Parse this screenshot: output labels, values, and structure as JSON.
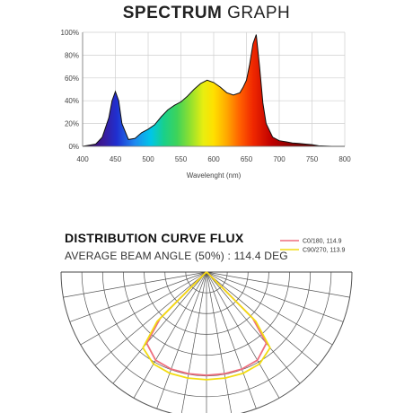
{
  "chart_data": [
    {
      "type": "area",
      "title_bold": "SPECTRUM",
      "title_rest": "GRAPH",
      "xlabel": "Wavelenght (nm)",
      "ylabel": "",
      "xlim": [
        400,
        800
      ],
      "ylim": [
        0,
        100
      ],
      "x_ticks": [
        400,
        450,
        500,
        550,
        600,
        650,
        700,
        750,
        800
      ],
      "y_ticks": [
        "0%",
        "20%",
        "40%",
        "60%",
        "80%",
        "100%"
      ],
      "grid": true,
      "fill": "rainbow",
      "series": [
        {
          "x": [
            400,
            420,
            430,
            440,
            445,
            450,
            455,
            460,
            470,
            480,
            490,
            500,
            510,
            520,
            530,
            540,
            550,
            560,
            570,
            580,
            590,
            600,
            610,
            620,
            630,
            640,
            645,
            650,
            655,
            660,
            665,
            670,
            675,
            680,
            690,
            700,
            710,
            720,
            730,
            740,
            750,
            760,
            780,
            800
          ],
          "y": [
            0,
            2,
            8,
            25,
            40,
            48,
            40,
            20,
            6,
            7,
            12,
            15,
            19,
            26,
            32,
            36,
            39,
            44,
            50,
            55,
            58,
            56,
            52,
            47,
            45,
            47,
            52,
            58,
            72,
            90,
            98,
            70,
            38,
            20,
            8,
            5,
            4,
            3,
            2.5,
            2,
            1.5,
            0.5,
            0,
            0
          ]
        }
      ]
    },
    {
      "type": "polar",
      "title": "DISTRIBUTION CURVE FLUX",
      "subtitle": "AVERAGE BEAM ANGLE  (50%) : 114.4 DEG",
      "rmax": 100,
      "rings": 7,
      "spokes_deg": 10,
      "series": [
        {
          "name": "C0/180, 114.9",
          "color": "#ee6f7e",
          "angles": [
            -90,
            -80,
            -70,
            -60,
            -50,
            -45,
            -40,
            -30,
            -20,
            -10,
            0,
            10,
            20,
            30,
            40,
            45,
            50,
            60,
            70,
            80,
            90
          ],
          "r": [
            0,
            0,
            0,
            0,
            2,
            45,
            64,
            70,
            71,
            71,
            71,
            71,
            71,
            70,
            64,
            45,
            2,
            0,
            0,
            0,
            0
          ]
        },
        {
          "name": "C90/270, 113.9",
          "color": "#f2dc12",
          "angles": [
            -90,
            -80,
            -70,
            -60,
            -50,
            -45,
            -40,
            -30,
            -20,
            -10,
            0,
            10,
            20,
            30,
            40,
            45,
            50,
            60,
            70,
            80,
            90
          ],
          "r": [
            0,
            0,
            0,
            0,
            1,
            48,
            68,
            73,
            74,
            74,
            74,
            74,
            74,
            73,
            68,
            48,
            1,
            0,
            0,
            0,
            0
          ]
        }
      ]
    }
  ]
}
